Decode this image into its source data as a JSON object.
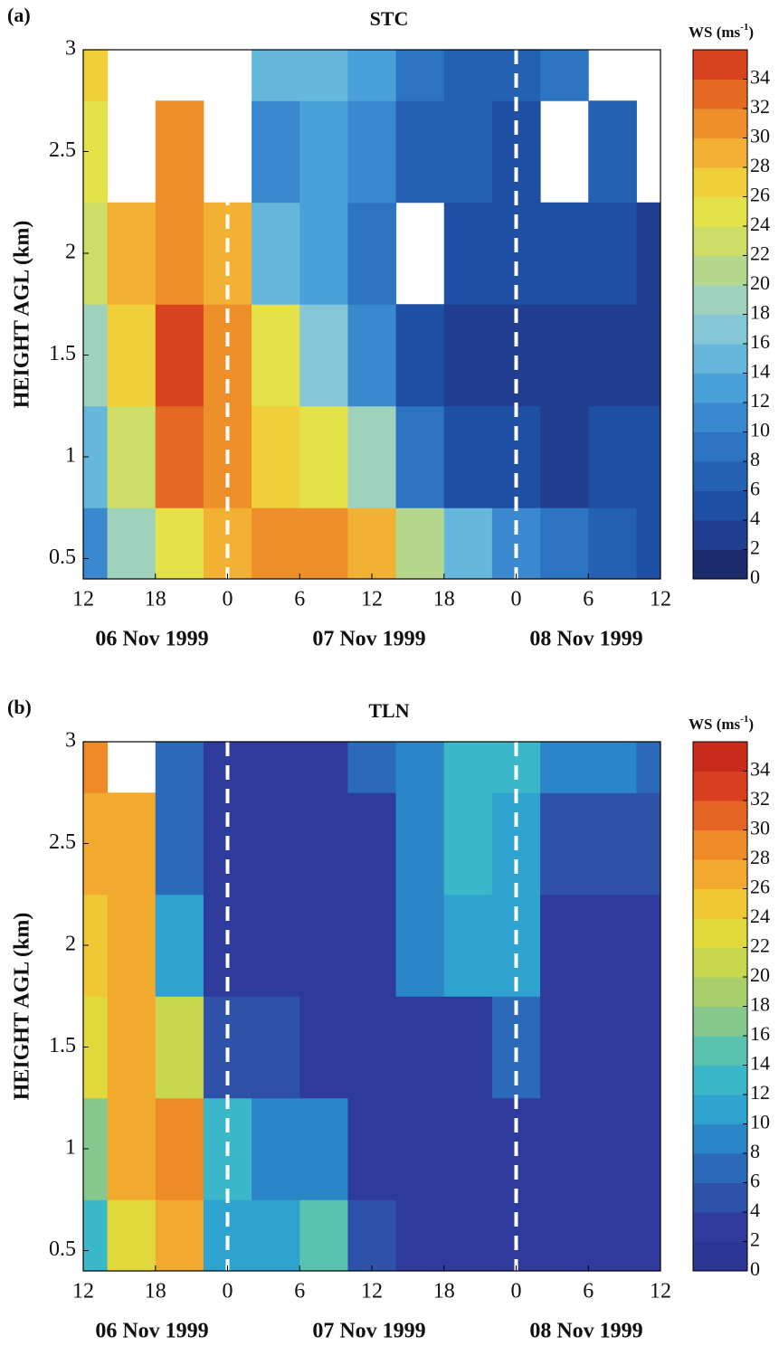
{
  "chart_data": [
    {
      "type": "heatmap",
      "panel": "(a)",
      "title": "STC",
      "ylabel": "HEIGHT AGL (km)",
      "x": [
        12,
        16,
        20,
        24,
        28,
        32,
        36,
        40,
        44,
        48,
        52,
        56,
        60
      ],
      "y": [
        0.5,
        1,
        1.5,
        2,
        2.5,
        3
      ],
      "z": [
        [
          10,
          18,
          24,
          28,
          30,
          30,
          28,
          20,
          14,
          10,
          8,
          6,
          4
        ],
        [
          14,
          22,
          32,
          30,
          26,
          24,
          18,
          8,
          4,
          4,
          2,
          4,
          4
        ],
        [
          18,
          26,
          34,
          30,
          24,
          16,
          10,
          4,
          2,
          2,
          2,
          2,
          2
        ],
        [
          22,
          28,
          30,
          28,
          14,
          12,
          8,
          null,
          4,
          4,
          4,
          4,
          2
        ],
        [
          24,
          null,
          30,
          null,
          10,
          12,
          10,
          6,
          6,
          4,
          null,
          6,
          null
        ],
        [
          26,
          null,
          null,
          null,
          14,
          14,
          12,
          8,
          6,
          6,
          8,
          null,
          null
        ]
      ],
      "xlim": [
        12,
        60
      ],
      "ylim": [
        0.4,
        3
      ],
      "xticks": [
        12,
        18,
        {
          "value": 24,
          "label": "0"
        },
        {
          "value": 30,
          "label": "6"
        },
        {
          "value": 36,
          "label": "12"
        },
        {
          "value": 42,
          "label": "18"
        },
        {
          "value": 48,
          "label": "0"
        },
        {
          "value": 54,
          "label": "6"
        },
        {
          "value": 60,
          "label": "12"
        }
      ],
      "yticks": [
        0.5,
        1,
        1.5,
        2,
        2.5,
        3
      ],
      "date_labels": [
        "06 Nov 1999",
        "07 Nov 1999",
        "08 Nov 1999"
      ],
      "day_lines": [
        24,
        48
      ],
      "cbar_label": {
        "text": "WS (ms",
        "sup": "-1",
        "end": ")"
      },
      "clim": [
        0,
        36
      ],
      "cticks": [
        0,
        2,
        4,
        6,
        8,
        10,
        12,
        14,
        16,
        18,
        20,
        22,
        24,
        26,
        28,
        30,
        32,
        34
      ],
      "colormap": [
        "#1c2b6b",
        "#213d8f",
        "#1f4fa3",
        "#2461b3",
        "#2c74c2",
        "#3a89cf",
        "#4aa0d8",
        "#66b7dc",
        "#86c7d6",
        "#9fd2bc",
        "#b5d88e",
        "#cddd66",
        "#e4e248",
        "#f0cf3a",
        "#f2b132",
        "#ee8f2a",
        "#e46a24",
        "#d6431e"
      ]
    },
    {
      "type": "heatmap",
      "panel": "(b)",
      "title": "TLN",
      "ylabel": "HEIGHT AGL (km)",
      "x": [
        12,
        16,
        20,
        24,
        28,
        32,
        36,
        40,
        44,
        48,
        52,
        56,
        60
      ],
      "y": [
        0.5,
        1,
        1.5,
        2,
        2.5,
        3
      ],
      "z": [
        [
          12,
          22,
          26,
          10,
          10,
          14,
          4,
          2,
          2,
          2,
          2,
          2,
          2
        ],
        [
          16,
          26,
          28,
          12,
          8,
          8,
          2,
          2,
          2,
          2,
          2,
          2,
          2
        ],
        [
          22,
          26,
          20,
          4,
          4,
          2,
          2,
          2,
          2,
          6,
          2,
          2,
          2
        ],
        [
          24,
          26,
          10,
          2,
          2,
          2,
          2,
          8,
          10,
          10,
          2,
          2,
          2
        ],
        [
          26,
          26,
          6,
          2,
          2,
          2,
          2,
          8,
          12,
          10,
          4,
          4,
          4
        ],
        [
          28,
          null,
          6,
          2,
          2,
          2,
          6,
          8,
          12,
          12,
          8,
          8,
          6
        ]
      ],
      "xlim": [
        12,
        60
      ],
      "ylim": [
        0.4,
        3
      ],
      "xticks": [
        12,
        18,
        {
          "value": 24,
          "label": "0"
        },
        {
          "value": 30,
          "label": "6"
        },
        {
          "value": 36,
          "label": "12"
        },
        {
          "value": 42,
          "label": "18"
        },
        {
          "value": 48,
          "label": "0"
        },
        {
          "value": 54,
          "label": "6"
        },
        {
          "value": 60,
          "label": "12"
        }
      ],
      "yticks": [
        0.5,
        1,
        1.5,
        2,
        2.5,
        3
      ],
      "date_labels": [
        "06 Nov 1999",
        "07 Nov 1999",
        "08 Nov 1999"
      ],
      "day_lines": [
        24,
        48
      ],
      "cbar_label": {
        "text": "WS (ms",
        "sup": "-1",
        "end": ")"
      },
      "clim": [
        0,
        36
      ],
      "cticks": [
        0,
        2,
        4,
        6,
        8,
        10,
        12,
        14,
        16,
        18,
        20,
        22,
        24,
        26,
        28,
        30,
        32,
        34
      ],
      "colormap": [
        "#2b3594",
        "#2e3a9c",
        "#2e52a8",
        "#2a6ab8",
        "#2a86c6",
        "#2ea3cf",
        "#3ab8c9",
        "#5cc2b0",
        "#86c98f",
        "#a9cf6c",
        "#c8d650",
        "#e1d93c",
        "#f0c836",
        "#f2aa2e",
        "#ee8a28",
        "#e66524",
        "#d9401f",
        "#c82a1c"
      ]
    }
  ]
}
